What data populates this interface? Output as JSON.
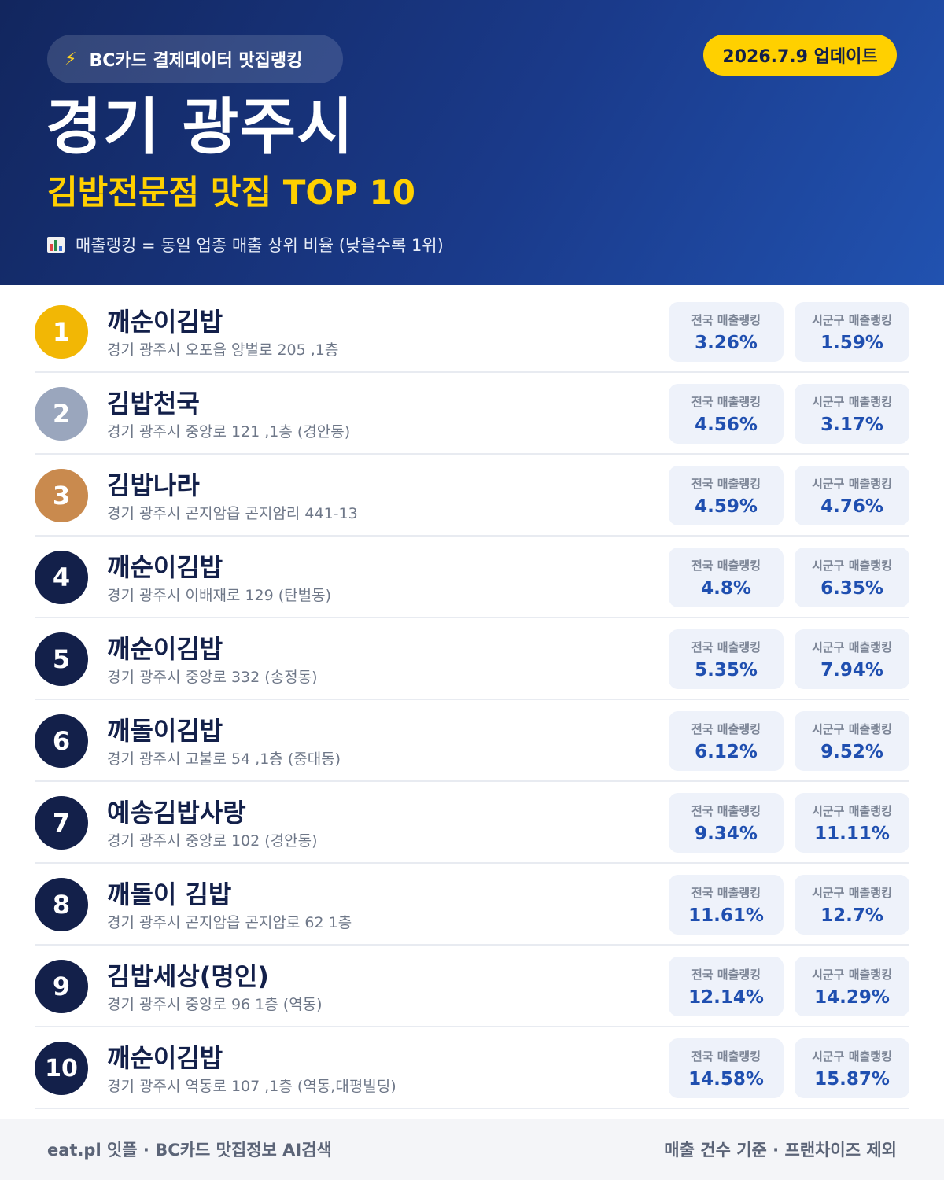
{
  "header": {
    "brand": "BC카드 결제데이터 맛집랭킹",
    "update": "2026.7.9 업데이트",
    "region": "경기 광주시",
    "subtitle": "김밥전문점 맛집 TOP 10",
    "legend": "매출랭킹 = 동일 업종 매출 상위 비율 (낮을수록 1위)"
  },
  "labels": {
    "national": "전국 매출랭킹",
    "local": "시군구 매출랭킹"
  },
  "items": [
    {
      "rank": "1",
      "name": "깨순이김밥",
      "address": "경기 광주시 오포읍 양벌로 205 ,1층",
      "national": "3.26%",
      "local": "1.59%"
    },
    {
      "rank": "2",
      "name": "김밥천국",
      "address": "경기 광주시 중앙로 121 ,1층 (경안동)",
      "national": "4.56%",
      "local": "3.17%"
    },
    {
      "rank": "3",
      "name": "김밥나라",
      "address": "경기 광주시 곤지암읍 곤지암리 441-13",
      "national": "4.59%",
      "local": "4.76%"
    },
    {
      "rank": "4",
      "name": "깨순이김밥",
      "address": "경기 광주시 이배재로 129 (탄벌동)",
      "national": "4.8%",
      "local": "6.35%"
    },
    {
      "rank": "5",
      "name": "깨순이김밥",
      "address": "경기 광주시 중앙로 332 (송정동)",
      "national": "5.35%",
      "local": "7.94%"
    },
    {
      "rank": "6",
      "name": "깨돌이김밥",
      "address": "경기 광주시 고불로 54 ,1층 (중대동)",
      "national": "6.12%",
      "local": "9.52%"
    },
    {
      "rank": "7",
      "name": "예송김밥사랑",
      "address": "경기 광주시 중앙로 102 (경안동)",
      "national": "9.34%",
      "local": "11.11%"
    },
    {
      "rank": "8",
      "name": "깨돌이 김밥",
      "address": "경기 광주시 곤지암읍 곤지암로 62 1층",
      "national": "11.61%",
      "local": "12.7%"
    },
    {
      "rank": "9",
      "name": "김밥세상(명인)",
      "address": "경기 광주시 중앙로 96 1층 (역동)",
      "national": "12.14%",
      "local": "14.29%"
    },
    {
      "rank": "10",
      "name": "깨순이김밥",
      "address": "경기 광주시 역동로 107 ,1층 (역동,대평빌딩)",
      "national": "14.58%",
      "local": "15.87%"
    }
  ],
  "footer": {
    "left": "eat.pl 잇플 · BC카드 맛집정보 AI검색",
    "right": "매출 건수 기준 · 프랜차이즈 제외"
  }
}
